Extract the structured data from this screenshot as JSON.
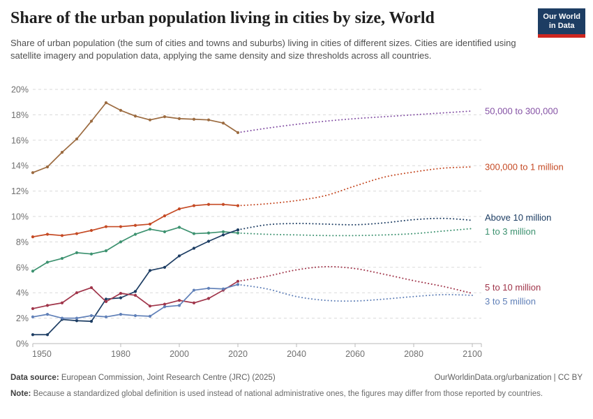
{
  "header": {
    "title": "Share of the urban population living in cities by size, World",
    "subtitle": "Share of urban population (the sum of cities and towns and suburbs) living in cities of different sizes. Cities are identified using satellite imagery and population data, applying the same density and size thresholds across all countries.",
    "logo": {
      "line1": "Our World",
      "line2": "in Data"
    }
  },
  "footer": {
    "source_label": "Data source:",
    "source_text": " European Commission, Joint Research Centre (JRC) (2025)",
    "right_text": "OurWorldinData.org/urbanization | CC BY",
    "note_label": "Note:",
    "note_text": " Because a standardized global definition is used instead of national administrative ones, the figures may differ from those reported by countries."
  },
  "chart_data": {
    "type": "line",
    "xlabel": "",
    "ylabel": "",
    "xlim": [
      1950,
      2100
    ],
    "ylim": [
      0,
      20
    ],
    "grid": "horizontal-dashed",
    "legend_position": "right-of-line-ends",
    "y_suffix": "%",
    "y_ticks": [
      0,
      2,
      4,
      6,
      8,
      10,
      12,
      14,
      16,
      18,
      20
    ],
    "x_ticks": [
      1950,
      1980,
      2000,
      2020,
      2040,
      2060,
      2080,
      2100
    ],
    "x_historical": [
      1950,
      1955,
      1960,
      1965,
      1970,
      1975,
      1980,
      1985,
      1990,
      1995,
      2000,
      2005,
      2010,
      2015,
      2020
    ],
    "x_projection": [
      2020,
      2030,
      2040,
      2050,
      2060,
      2070,
      2080,
      2090,
      2100
    ],
    "series": [
      {
        "name": "50,000 to 300,000",
        "color_historical": "#9C6B40",
        "color_projection": "#8552A5",
        "historical": [
          13.45,
          13.9,
          15.05,
          16.1,
          17.5,
          18.95,
          18.35,
          17.9,
          17.6,
          17.85,
          17.7,
          17.65,
          17.6,
          17.35,
          16.6
        ],
        "projection": [
          16.6,
          16.95,
          17.25,
          17.5,
          17.7,
          17.85,
          18.0,
          18.15,
          18.3
        ]
      },
      {
        "name": "300,000 to 1 million",
        "color_historical": "#C54A24",
        "color_projection": "#C54A24",
        "historical": [
          8.4,
          8.6,
          8.5,
          8.65,
          8.9,
          9.2,
          9.2,
          9.3,
          9.4,
          10.05,
          10.6,
          10.85,
          10.95,
          10.95,
          10.85
        ],
        "projection": [
          10.85,
          11.0,
          11.25,
          11.65,
          12.4,
          13.1,
          13.5,
          13.8,
          13.9
        ]
      },
      {
        "name": "1 to 3 million",
        "color_historical": "#3D9270",
        "color_projection": "#3D9270",
        "historical": [
          5.7,
          6.4,
          6.7,
          7.15,
          7.05,
          7.3,
          8.0,
          8.6,
          9.0,
          8.8,
          9.15,
          8.65,
          8.7,
          8.8,
          8.7
        ],
        "projection": [
          8.7,
          8.6,
          8.55,
          8.5,
          8.5,
          8.55,
          8.65,
          8.85,
          9.05
        ]
      },
      {
        "name": "Above 10 million",
        "color_historical": "#1D3D63",
        "color_projection": "#1D3D63",
        "historical": [
          0.7,
          0.7,
          1.9,
          1.8,
          1.75,
          3.5,
          3.6,
          4.1,
          5.75,
          6.0,
          6.9,
          7.5,
          8.05,
          8.55,
          8.95
        ],
        "projection": [
          8.95,
          9.35,
          9.45,
          9.4,
          9.35,
          9.5,
          9.75,
          9.85,
          9.7
        ]
      },
      {
        "name": "5 to 10 million",
        "color_historical": "#A0354A",
        "color_projection": "#A0354A",
        "historical": [
          2.75,
          3.0,
          3.2,
          4.0,
          4.4,
          3.3,
          3.95,
          3.8,
          2.95,
          3.1,
          3.4,
          3.2,
          3.55,
          4.2,
          4.9
        ],
        "projection": [
          4.9,
          5.3,
          5.8,
          6.05,
          5.9,
          5.45,
          4.95,
          4.5,
          3.95
        ]
      },
      {
        "name": "3 to 5 million",
        "color_historical": "#6080B8",
        "color_projection": "#6080B8",
        "historical": [
          2.1,
          2.3,
          2.0,
          2.0,
          2.2,
          2.1,
          2.3,
          2.2,
          2.15,
          2.9,
          3.0,
          4.2,
          4.35,
          4.3,
          4.65
        ],
        "projection": [
          4.65,
          4.3,
          3.7,
          3.4,
          3.35,
          3.5,
          3.7,
          3.85,
          3.8
        ]
      }
    ]
  }
}
